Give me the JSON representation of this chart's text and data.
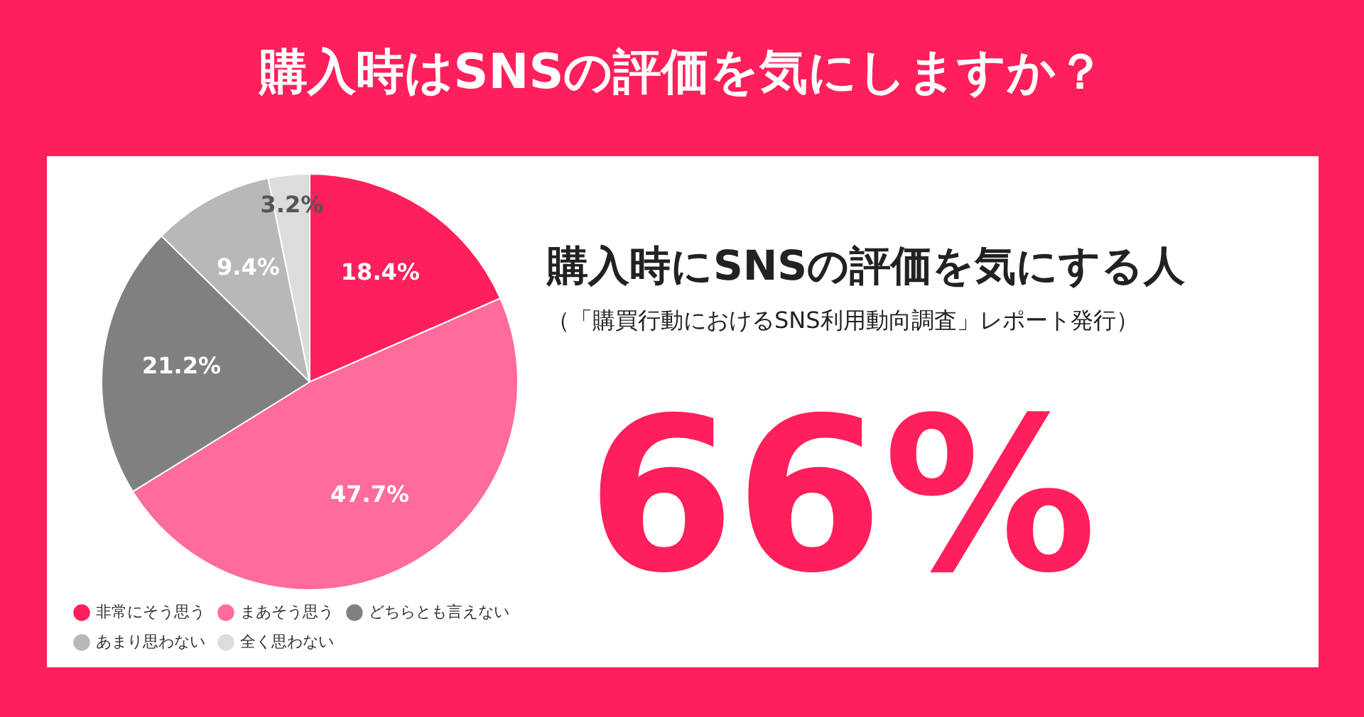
{
  "chart_data": {
    "type": "pie",
    "title": "購入時はSNSの評価を気にしますか？",
    "subtitle": "購入時にSNSの評価を気にする人",
    "categories": [
      "非常にそう思う",
      "まあそう思う",
      "どちらとも言えない",
      "あまり思わない",
      "全く思わない"
    ],
    "values": [
      18.4,
      47.7,
      21.2,
      9.4,
      3.2
    ],
    "value_labels": [
      "18.4%",
      "47.7%",
      "21.2%",
      "9.4%",
      "3.2%"
    ],
    "colors": [
      "#ff1f5a",
      "#ff6b9b",
      "#808080",
      "#b8b8b8",
      "#dcdcdc"
    ],
    "legend": "bottom left",
    "annotations": [
      "（「購買行動におけるSNS利用動向調査」レポート発行）",
      "66%"
    ]
  }
}
